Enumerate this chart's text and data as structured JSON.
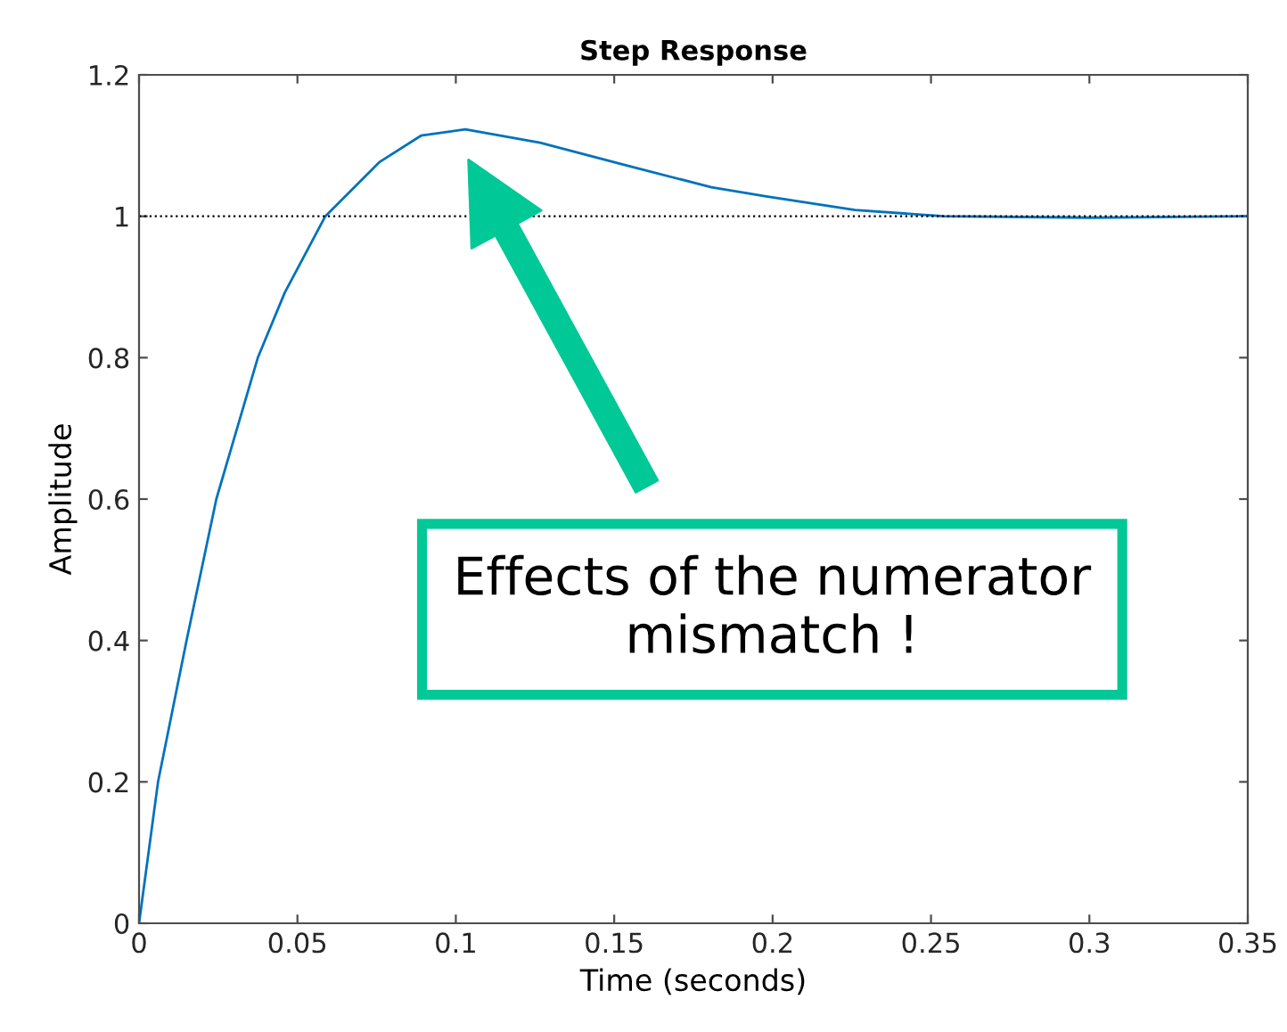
{
  "chart_data": {
    "type": "line",
    "title": "Step Response",
    "xlabel": "Time (seconds)",
    "ylabel": "Amplitude",
    "xlim": [
      0,
      0.35
    ],
    "xticks": [
      0,
      0.05,
      0.1,
      0.15,
      0.2,
      0.25,
      0.3,
      0.35
    ],
    "ylim": [
      0,
      1.2
    ],
    "yticks": [
      0,
      0.2,
      0.4,
      0.6,
      0.8,
      1,
      1.2
    ],
    "grid": false,
    "legend": false,
    "series": [
      {
        "color": "#0072bd",
        "x": [
          0,
          0.006,
          0.015,
          0.0244,
          0.0375,
          0.046,
          0.0588,
          0.076,
          0.089,
          0.103,
          0.1266,
          0.1547,
          0.1807,
          0.198,
          0.226,
          0.254,
          0.3,
          0.35
        ],
        "values": [
          0,
          0.2,
          0.4,
          0.6,
          0.8,
          0.892,
          1.0,
          1.077,
          1.114,
          1.123,
          1.104,
          1.071,
          1.041,
          1.028,
          1.009,
          1.0,
          0.998,
          1.0
        ]
      }
    ],
    "ref_lines": [
      {
        "axis": "y",
        "value": 1,
        "color": "#000000",
        "line_style": "dotted"
      }
    ],
    "annotations": [
      "Effects of the numerator\nmismatch !"
    ]
  }
}
